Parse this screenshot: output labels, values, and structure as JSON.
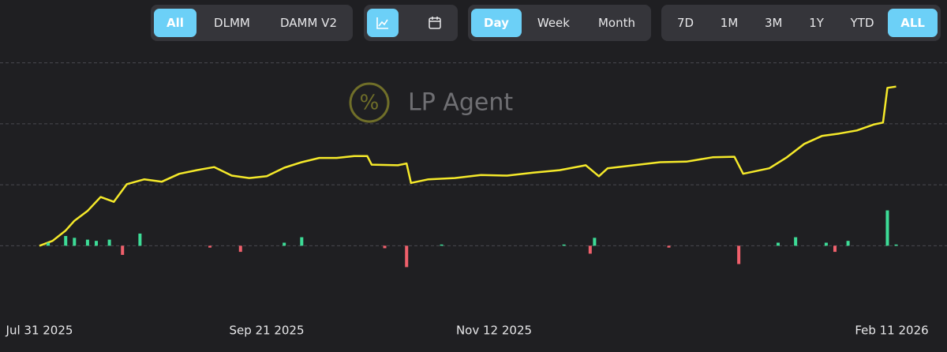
{
  "toolbar": {
    "groups": [
      {
        "items": [
          "All",
          "DLMM",
          "DAMM V2"
        ],
        "active": 0
      },
      {
        "items": [
          "Day",
          "Week",
          "Month"
        ],
        "active": 0
      },
      {
        "items": [
          "7D",
          "1M",
          "3M",
          "1Y",
          "YTD",
          "ALL"
        ],
        "active": 5
      }
    ]
  },
  "watermark": "LP Agent",
  "chart_data": {
    "type": "line",
    "xlim": [
      "2025-07-31",
      "2026-02-11"
    ],
    "xticks": [
      {
        "value": "2025-07-31",
        "label": "Jul 31 2025"
      },
      {
        "value": "2025-09-21",
        "label": "Sep 21 2025"
      },
      {
        "value": "2025-11-12",
        "label": "Nov 12 2025"
      },
      {
        "value": "2026-02-11",
        "label": "Feb 11 2026"
      }
    ],
    "ylim": [
      -0.5,
      3.15
    ],
    "yticks": [
      0,
      1,
      2,
      3
    ],
    "grid": true,
    "series": [
      {
        "type": "line",
        "color": "#f5e92a",
        "x": [
          "2025-07-31",
          "2025-08-03",
          "2025-08-06",
          "2025-08-08",
          "2025-08-11",
          "2025-08-14",
          "2025-08-17",
          "2025-08-20",
          "2025-08-24",
          "2025-08-28",
          "2025-09-01",
          "2025-09-05",
          "2025-09-09",
          "2025-09-13",
          "2025-09-17",
          "2025-09-21",
          "2025-09-25",
          "2025-09-29",
          "2025-10-03",
          "2025-10-07",
          "2025-10-11",
          "2025-10-14",
          "2025-10-15",
          "2025-10-21",
          "2025-10-23",
          "2025-10-24",
          "2025-10-28",
          "2025-11-03",
          "2025-11-09",
          "2025-11-15",
          "2025-11-21",
          "2025-11-27",
          "2025-12-03",
          "2025-12-06",
          "2025-12-08",
          "2025-12-14",
          "2025-12-20",
          "2025-12-26",
          "2026-01-01",
          "2026-01-06",
          "2026-01-08",
          "2026-01-14",
          "2026-01-18",
          "2026-01-22",
          "2026-01-26",
          "2026-01-30",
          "2026-02-03",
          "2026-02-07",
          "2026-02-09",
          "2026-02-10",
          "2026-02-12"
        ],
        "values": [
          0,
          0.08,
          0.25,
          0.41,
          0.57,
          0.8,
          0.72,
          1.01,
          1.09,
          1.05,
          1.18,
          1.24,
          1.29,
          1.15,
          1.11,
          1.14,
          1.28,
          1.37,
          1.44,
          1.44,
          1.47,
          1.47,
          1.33,
          1.32,
          1.35,
          1.03,
          1.09,
          1.11,
          1.16,
          1.15,
          1.2,
          1.24,
          1.32,
          1.14,
          1.27,
          1.32,
          1.37,
          1.38,
          1.45,
          1.46,
          1.18,
          1.27,
          1.45,
          1.67,
          1.8,
          1.84,
          1.89,
          1.99,
          2.02,
          2.59,
          2.61
        ]
      },
      {
        "type": "bar",
        "positive_color": "#3ddc97",
        "negative_color": "#f0606c",
        "x": [
          "2025-08-02",
          "2025-08-06",
          "2025-08-08",
          "2025-08-11",
          "2025-08-13",
          "2025-08-16",
          "2025-08-19",
          "2025-08-23",
          "2025-09-08",
          "2025-09-15",
          "2025-09-25",
          "2025-09-29",
          "2025-10-18",
          "2025-10-23",
          "2025-10-31",
          "2025-11-28",
          "2025-12-04",
          "2025-12-05",
          "2025-12-22",
          "2026-01-07",
          "2026-01-16",
          "2026-01-20",
          "2026-01-27",
          "2026-01-29",
          "2026-02-01",
          "2026-02-10",
          "2026-02-12"
        ],
        "values": [
          0.05,
          0.16,
          0.13,
          0.1,
          0.08,
          0.1,
          -0.15,
          0.2,
          -0.03,
          -0.1,
          0.05,
          0.14,
          -0.04,
          -0.35,
          0.02,
          0.02,
          -0.13,
          0.13,
          -0.03,
          -0.3,
          0.05,
          0.14,
          0.05,
          -0.1,
          0.08,
          0.58,
          0.02
        ]
      }
    ]
  }
}
